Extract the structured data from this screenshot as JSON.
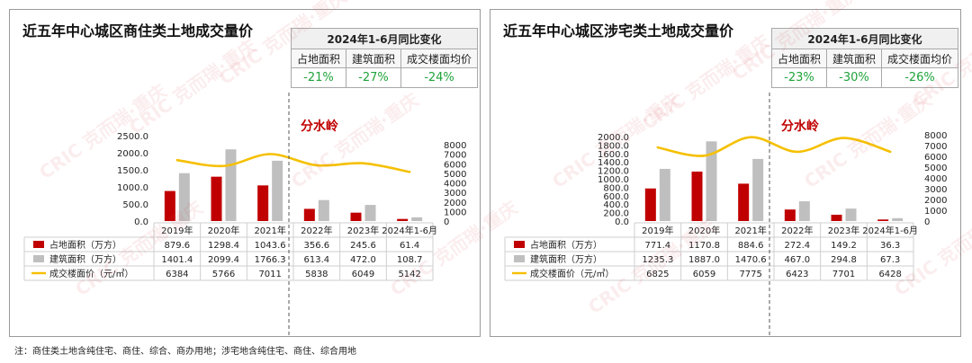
{
  "panels": [
    {
      "title": "近五年中心城区商住类土地成交量价",
      "stats": {
        "header": "2024年1-6月同比变化",
        "labels": [
          "占地面积",
          "建筑面积",
          "成交楼面均价"
        ],
        "values": [
          "-21%",
          "-27%",
          "-24%"
        ]
      },
      "divider_label": "分水岭"
    },
    {
      "title": "近五年中心城区涉宅类土地成交量价",
      "stats": {
        "header": "2024年1-6月同比变化",
        "labels": [
          "占地面积",
          "建筑面积",
          "成交楼面均价"
        ],
        "values": [
          "-23%",
          "-30%",
          "-26%"
        ]
      },
      "divider_label": "分水岭"
    }
  ],
  "footnote": "注：商住类土地含纯住宅、商住、综合、商办用地；涉宅地含纯住宅、商住、综合用地",
  "watermark": "CRIC 克而瑞·重庆",
  "colors": {
    "land_area": "#c00000",
    "build_area": "#bfbfbf",
    "avg_price": "#f5c000",
    "positive_change": "#1fa33a"
  },
  "chart_data": [
    {
      "type": "bar",
      "categories": [
        "2019年",
        "2020年",
        "2021年",
        "2022年",
        "2023年",
        "2024年1-6月"
      ],
      "series": [
        {
          "name": "占地面积（万方）",
          "axis": "left",
          "values": [
            879.6,
            1298.4,
            1043.6,
            356.6,
            245.6,
            61.4
          ],
          "labels": [
            "879.6",
            "1298.4",
            "1043.6",
            "356.6",
            "245.6",
            "61.4"
          ]
        },
        {
          "name": "建筑面积（万方）",
          "axis": "left",
          "values": [
            1401.4,
            2099.4,
            1766.3,
            613.4,
            472.0,
            108.7
          ],
          "labels": [
            "1401.4",
            "2099.4",
            "1766.3",
            "613.4",
            "472.0",
            "108.7"
          ]
        },
        {
          "name": "成交楼面价（元/㎡）",
          "axis": "right",
          "kind": "line",
          "values": [
            6384,
            5766,
            7011,
            5838,
            6049,
            5142
          ],
          "labels": [
            "6384",
            "5766",
            "7011",
            "5838",
            "6049",
            "5142"
          ]
        }
      ],
      "y_left_ticks": [
        "0.0",
        "500.0",
        "1000.0",
        "1500.0",
        "2000.0",
        "2500.0"
      ],
      "ylim_left": [
        0,
        2500
      ],
      "y_right_ticks": [
        "0",
        "1000",
        "2000",
        "3000",
        "4000",
        "5000",
        "6000",
        "7000",
        "8000"
      ],
      "ylim_right": [
        0,
        8000
      ],
      "legend": "table-bottom",
      "grid": false
    },
    {
      "type": "bar",
      "categories": [
        "2019年",
        "2020年",
        "2021年",
        "2022年",
        "2023年",
        "2024年1-6月"
      ],
      "series": [
        {
          "name": "占地面积（万方）",
          "axis": "left",
          "values": [
            771.4,
            1170.8,
            884.6,
            272.4,
            149.2,
            36.3
          ],
          "labels": [
            "771.4",
            "1170.8",
            "884.6",
            "272.4",
            "149.2",
            "36.3"
          ]
        },
        {
          "name": "建筑面积（万方）",
          "axis": "left",
          "values": [
            1235.3,
            1887.0,
            1470.6,
            467.0,
            294.8,
            67.3
          ],
          "labels": [
            "1235.3",
            "1887.0",
            "1470.6",
            "467.0",
            "294.8",
            "67.3"
          ]
        },
        {
          "name": "成交楼面价（元/㎡）",
          "axis": "right",
          "kind": "line",
          "values": [
            6825,
            6059,
            7775,
            6423,
            7701,
            6428
          ],
          "labels": [
            "6825",
            "6059",
            "7775",
            "6423",
            "7701",
            "6428"
          ]
        }
      ],
      "y_left_ticks": [
        "0.0",
        "200.0",
        "400.0",
        "600.0",
        "800.0",
        "1000.0",
        "1200.0",
        "1400.0",
        "1600.0",
        "1800.0",
        "2000.0"
      ],
      "ylim_left": [
        0,
        2000
      ],
      "y_right_ticks": [
        "0",
        "1000",
        "2000",
        "3000",
        "4000",
        "5000",
        "6000",
        "7000",
        "8000"
      ],
      "ylim_right": [
        0,
        8000
      ],
      "legend": "table-bottom",
      "grid": false
    }
  ]
}
